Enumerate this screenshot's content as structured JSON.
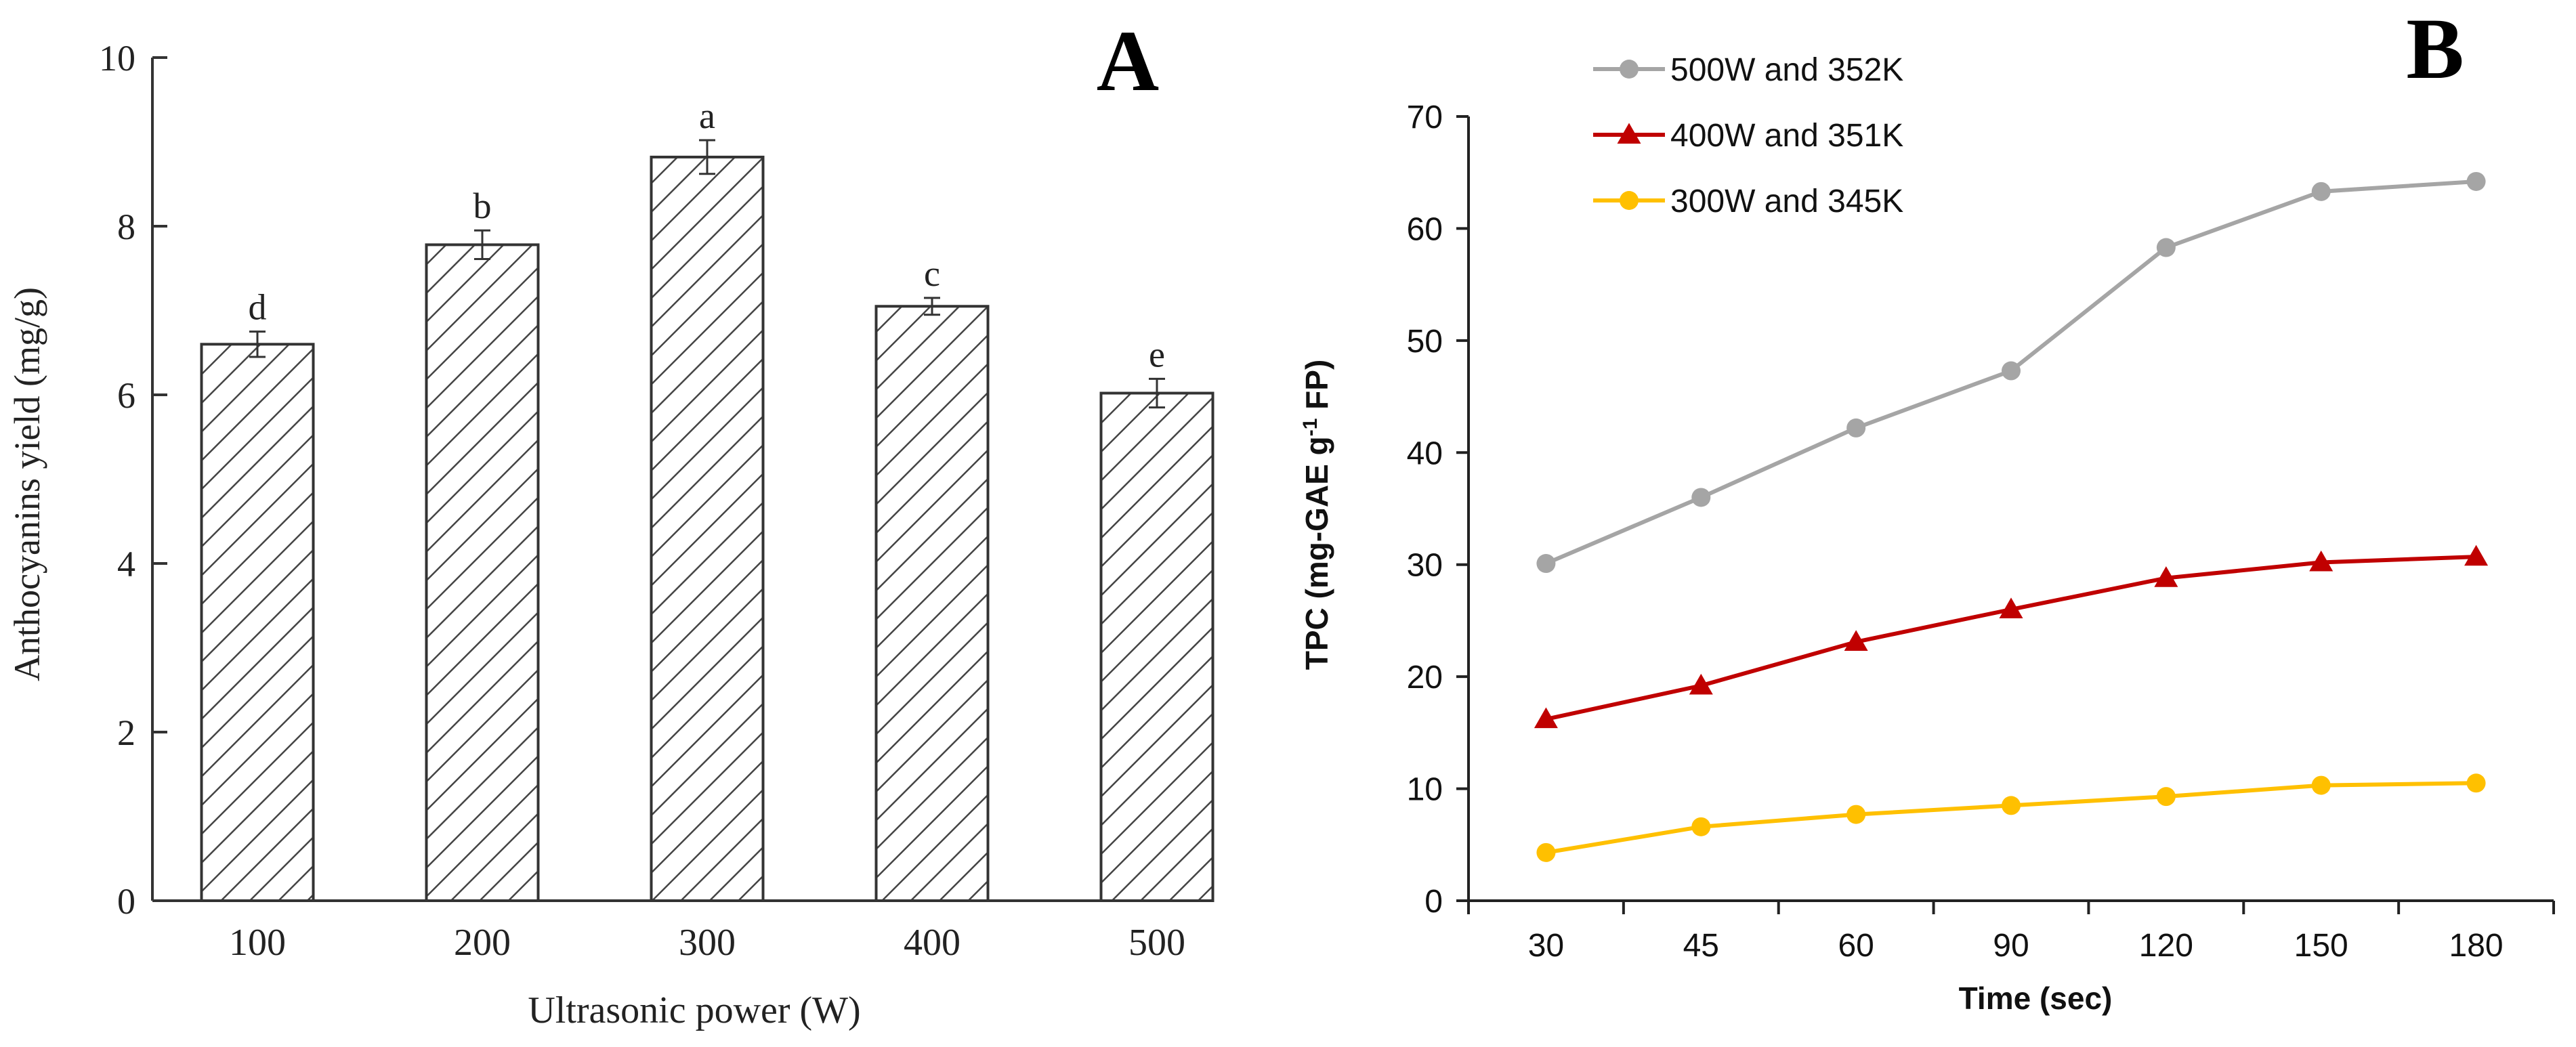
{
  "panels": {
    "a": {
      "letter": "A"
    },
    "b": {
      "letter": "B"
    }
  },
  "chart_data": [
    {
      "panel": "A",
      "type": "bar",
      "title": "",
      "xlabel": "Ultrasonic power (W)",
      "ylabel": "Anthocyanins yield (mg/g)",
      "ylim": [
        0,
        10
      ],
      "yticks": [
        "0",
        "2",
        "4",
        "6",
        "8",
        "10"
      ],
      "categories": [
        "100",
        "200",
        "300",
        "400",
        "500"
      ],
      "values": [
        6.6,
        7.78,
        8.82,
        7.05,
        6.02
      ],
      "errors": [
        0.15,
        0.17,
        0.2,
        0.1,
        0.17
      ],
      "significance_letters": [
        "d",
        "b",
        "a",
        "c",
        "e"
      ],
      "fill": "diagonal hatch",
      "grid": false
    },
    {
      "panel": "B",
      "type": "line",
      "title": "",
      "xlabel": "Time (sec)",
      "ylabel": "TPC (mg-GAE g",
      "ylabel_sup": "-1",
      "ylabel_end": " FP)",
      "ylim": [
        0,
        70
      ],
      "yticks": [
        "0",
        "10",
        "20",
        "30",
        "40",
        "50",
        "60",
        "70"
      ],
      "categories": [
        "30",
        "45",
        "60",
        "90",
        "120",
        "150",
        "180"
      ],
      "legend_position": "top-left",
      "series": [
        {
          "name": "500W and 352K",
          "marker": "circle",
          "color": "#a5a5a5",
          "values": [
            30.1,
            36.0,
            42.2,
            47.3,
            58.3,
            63.3,
            64.2
          ]
        },
        {
          "name": "400W and 351K",
          "marker": "triangle",
          "color": "#c00000",
          "values": [
            16.2,
            19.2,
            23.1,
            26.0,
            28.8,
            30.2,
            30.7
          ]
        },
        {
          "name": "300W and 345K",
          "marker": "circle",
          "color": "#ffc000",
          "values": [
            4.3,
            6.6,
            7.7,
            8.5,
            9.3,
            10.3,
            10.5
          ]
        }
      ],
      "grid": false
    }
  ]
}
